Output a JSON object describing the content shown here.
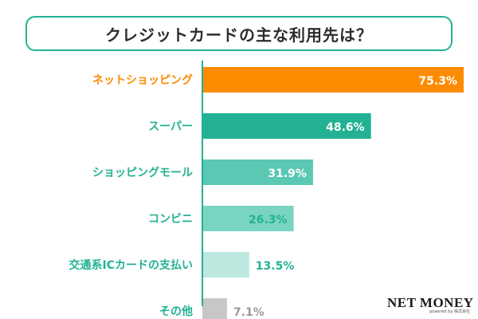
{
  "chart_data": {
    "type": "bar",
    "orientation": "horizontal",
    "title": "クレジットカードの主な利用先は？",
    "categories": [
      "ネットショッピング",
      "スーパー",
      "ショッピングモール",
      "コンビニ",
      "交通系ICカードの支払い",
      "その他"
    ],
    "values": [
      75.3,
      48.6,
      31.9,
      26.3,
      13.5,
      7.1
    ],
    "value_labels": [
      "75.3%",
      "48.6%",
      "31.9%",
      "26.3%",
      "13.5%",
      "7.1%"
    ],
    "unit": "%",
    "xlim": [
      0,
      75.3
    ],
    "xlabel": "",
    "ylabel": "",
    "grid": false,
    "legend": "none",
    "colors": {
      "bars": [
        "#fd8b00",
        "#22b293",
        "#5ac8b2",
        "#7ad4c2",
        "#bce8df",
        "#c7c7c7"
      ],
      "category_text": [
        "#fd8b00",
        "#22b293",
        "#22b293",
        "#22b293",
        "#22b293",
        "#22b293"
      ],
      "value_text": [
        "#ffffff",
        "#ffffff",
        "#ffffff",
        "#22b293",
        "#22b293",
        "#9a9a9a"
      ],
      "axis": "#22b293",
      "title_border": "#22b293"
    }
  },
  "branding": {
    "logo": "NET MONEY",
    "logo_sub": "powered by 株式会社"
  }
}
